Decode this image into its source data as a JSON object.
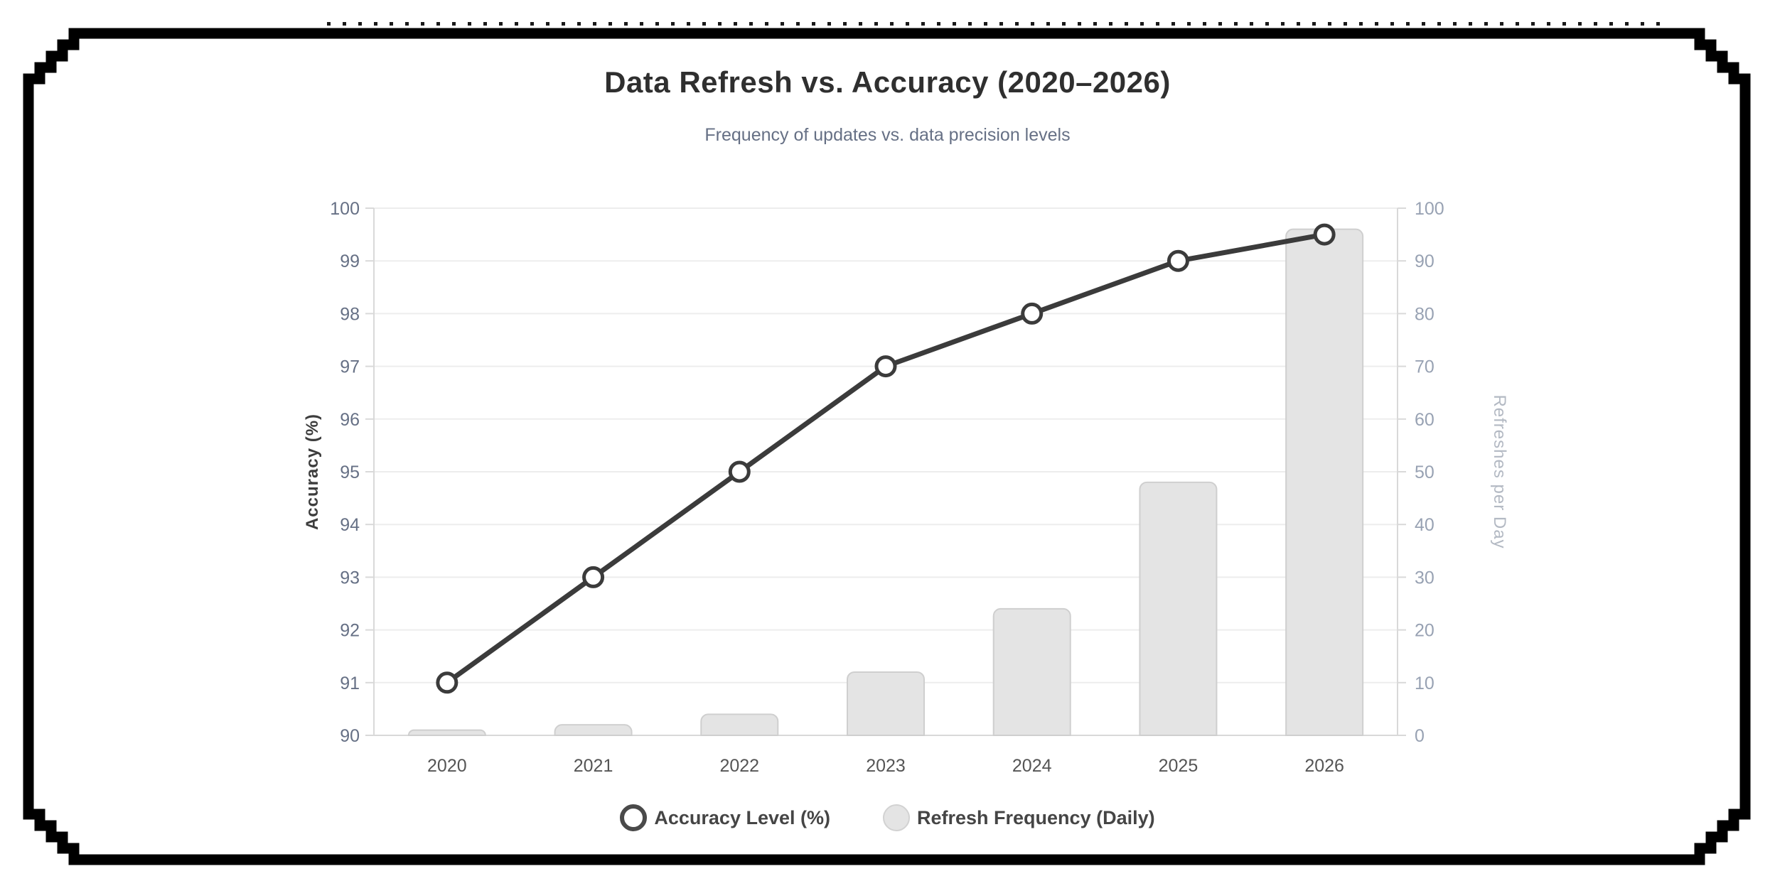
{
  "header": {
    "title": "Data Refresh vs. Accuracy (2020–2026)",
    "subtitle": "Frequency of updates vs. data precision levels"
  },
  "chart_data": {
    "type": "combo",
    "categories": [
      "2020",
      "2021",
      "2022",
      "2023",
      "2024",
      "2025",
      "2026"
    ],
    "series": [
      {
        "name": "Accuracy Level (%)",
        "type": "line",
        "axis": "left",
        "values": [
          91,
          93,
          95,
          97,
          98,
          99,
          99.5
        ],
        "line_color": "#3b3b3b",
        "marker_fill": "#ffffff",
        "marker_stroke": "#3b3b3b"
      },
      {
        "name": "Refresh Frequency (Daily)",
        "type": "bar",
        "axis": "right",
        "values": [
          1,
          2,
          4,
          12,
          24,
          48,
          96
        ],
        "bar_fill": "#e4e4e4",
        "bar_border": "#cfcfcf"
      }
    ],
    "title": "Data Refresh vs. Accuracy (2020–2026)",
    "subtitle": "Frequency of updates vs. data precision levels",
    "left_axis": {
      "label": "Accuracy (%)",
      "min": 90,
      "max": 100,
      "tick_step": 1,
      "label_color": "#3d3d3d",
      "tick_color": "#667085"
    },
    "right_axis": {
      "label": "Refreshes per Day",
      "min": 0,
      "max": 100,
      "tick_step": 10,
      "label_color": "#b3b9c3",
      "tick_color": "#98a2b3"
    },
    "x_axis": {
      "labels": [
        "2020",
        "2021",
        "2022",
        "2023",
        "2024",
        "2025",
        "2026"
      ],
      "tick_color": "#555555"
    },
    "grid": true,
    "grid_color": "#ededed",
    "axis_line_color": "#d9d9d9",
    "legend_position": "bottom"
  },
  "legend": {
    "items": [
      {
        "label": "Accuracy Level (%)",
        "marker": "ring-circle"
      },
      {
        "label": "Refresh Frequency (Daily)",
        "marker": "filled-circle"
      }
    ]
  },
  "frame": {
    "color": "#000000",
    "dot_color": "#1a1a1a"
  }
}
